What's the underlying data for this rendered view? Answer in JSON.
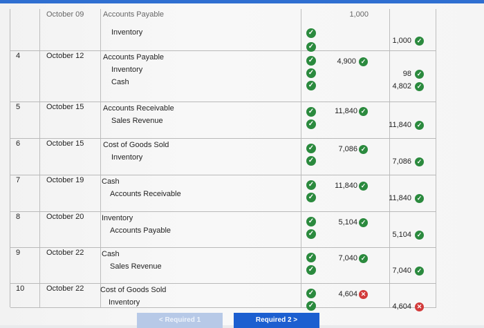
{
  "top_partial_row": {
    "date": "October 09",
    "acct1": "Accounts Payable",
    "acct2": "Inventory",
    "debit": "1,000",
    "credit": "1,000"
  },
  "rows": [
    {
      "no": "4",
      "date": "October 12",
      "line1": "Accounts Payable",
      "line2": "Inventory",
      "line3": "Cash",
      "debit": "4,900",
      "credit1": "98",
      "credit2": "4,802"
    },
    {
      "no": "5",
      "date": "October 15",
      "line1": "Accounts Receivable",
      "line2": "Sales Revenue",
      "debit": "11,840",
      "credit1": "11,840"
    },
    {
      "no": "6",
      "date": "October 15",
      "line1": "Cost of Goods Sold",
      "line2": "Inventory",
      "debit": "7,086",
      "credit1": "7,086"
    },
    {
      "no": "7",
      "date": "October 19",
      "line1": "Cash",
      "line2": "Accounts Receivable",
      "debit": "11,840",
      "credit1": "11,840"
    },
    {
      "no": "8",
      "date": "October 20",
      "line1": "Inventory",
      "line2": "Accounts Payable",
      "debit": "5,104",
      "credit1": "5,104"
    },
    {
      "no": "9",
      "date": "October 22",
      "line1": "Cash",
      "line2": "Sales Revenue",
      "debit": "7,040",
      "credit1": "7,040"
    },
    {
      "no": "10",
      "date": "October 22",
      "line1": "Cost of Goods Sold",
      "line2": "Inventory",
      "debit": "4,604",
      "credit1": "4,604"
    }
  ],
  "buttons": {
    "prev": "< Required 1",
    "next": "Required 2  >"
  }
}
